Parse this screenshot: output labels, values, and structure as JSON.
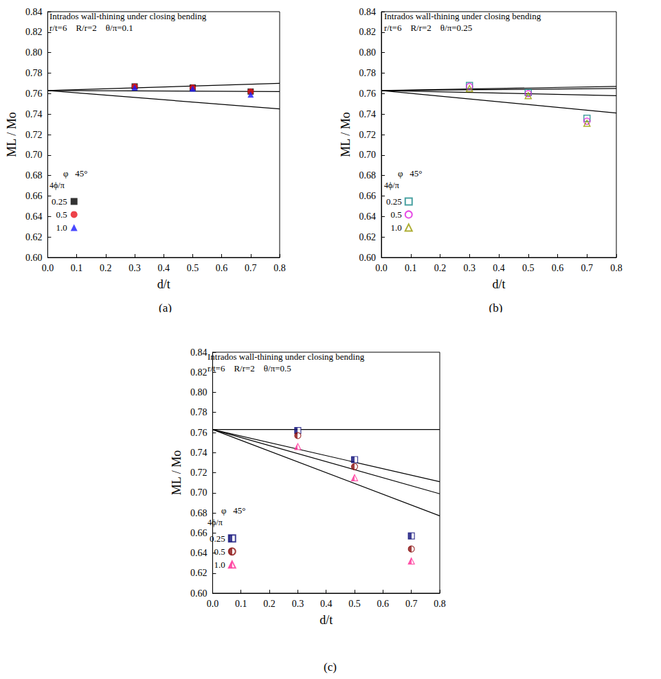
{
  "chart_data": [
    {
      "type": "scatter",
      "title": "Intrados wall-thining under closing bending",
      "subtitle": "r/t=6    R/r=2    θ/π=0.1",
      "caption": "(a)",
      "x_label": "d/t",
      "y_label": "ML / Mo",
      "legend": "lower left",
      "legend_title": "φ   45°",
      "legend_subtitle": "4ϕ/π",
      "grid": false,
      "xlim": [
        0,
        0.8
      ],
      "xticks": [
        {
          "value": 0,
          "label": "0.0"
        },
        {
          "value": 0.1,
          "label": "0.1"
        },
        {
          "value": 0.2,
          "label": "0.2"
        },
        {
          "value": 0.3,
          "label": "0.3"
        },
        {
          "value": 0.4,
          "label": "0.4"
        },
        {
          "value": 0.5,
          "label": "0.5"
        },
        {
          "value": 0.6,
          "label": "0.6"
        },
        {
          "value": 0.7,
          "label": "0.7"
        },
        {
          "value": 0.8,
          "label": "0.8"
        }
      ],
      "ylim": [
        0.6,
        0.84
      ],
      "yticks": [
        {
          "value": 0.6,
          "label": "0.60"
        },
        {
          "value": 0.62,
          "label": "0.62"
        },
        {
          "value": 0.64,
          "label": "0.64"
        },
        {
          "value": 0.66,
          "label": "0.66"
        },
        {
          "value": 0.68,
          "label": "0.68"
        },
        {
          "value": 0.7,
          "label": "0.70"
        },
        {
          "value": 0.72,
          "label": "0.72"
        },
        {
          "value": 0.74,
          "label": "0.74"
        },
        {
          "value": 0.76,
          "label": "0.76"
        },
        {
          "value": 0.78,
          "label": "0.78"
        },
        {
          "value": 0.8,
          "label": "0.80"
        },
        {
          "value": 0.82,
          "label": "0.82"
        },
        {
          "value": 0.84,
          "label": "0.84"
        }
      ],
      "x": [
        0.3,
        0.5,
        0.7
      ],
      "series": [
        {
          "name": "0.25",
          "color": "#000000",
          "marker": "square",
          "values": [
            0.767,
            0.766,
            0.762
          ]
        },
        {
          "name": "0.5",
          "color": "#e8131b",
          "marker": "circle",
          "values": [
            0.767,
            0.766,
            0.762
          ]
        },
        {
          "name": "1.0",
          "color": "#1a1aff",
          "marker": "triangle",
          "values": [
            0.766,
            0.765,
            0.759
          ]
        }
      ],
      "lines": [
        {
          "type": "line",
          "color": "#000000",
          "x": [
            0,
            0.8
          ],
          "values": [
            0.763,
            0.77
          ]
        },
        {
          "type": "line",
          "color": "#000000",
          "x": [
            0,
            0.8
          ],
          "values": [
            0.763,
            0.762
          ]
        },
        {
          "type": "line",
          "color": "#000000",
          "x": [
            0,
            0.8
          ],
          "values": [
            0.763,
            0.745
          ]
        }
      ]
    },
    {
      "type": "scatter",
      "title": "Intrados wall-thining under closing bending",
      "subtitle": "r/t=6    R/r=2    θ/π=0.25",
      "caption": "(b)",
      "x_label": "d/t",
      "y_label": "ML / Mo",
      "legend": "lower left",
      "legend_title": "φ   45°",
      "legend_subtitle": "4ϕ/π",
      "grid": false,
      "xlim": [
        0,
        0.8
      ],
      "xticks": [
        {
          "value": 0,
          "label": "0.0"
        },
        {
          "value": 0.1,
          "label": "0.1"
        },
        {
          "value": 0.2,
          "label": "0.2"
        },
        {
          "value": 0.3,
          "label": "0.3"
        },
        {
          "value": 0.4,
          "label": "0.4"
        },
        {
          "value": 0.5,
          "label": "0.5"
        },
        {
          "value": 0.6,
          "label": "0.6"
        },
        {
          "value": 0.7,
          "label": "0.7"
        },
        {
          "value": 0.8,
          "label": "0.8"
        }
      ],
      "ylim": [
        0.6,
        0.84
      ],
      "yticks": [
        {
          "value": 0.6,
          "label": "0.60"
        },
        {
          "value": 0.62,
          "label": "0.62"
        },
        {
          "value": 0.64,
          "label": "0.64"
        },
        {
          "value": 0.66,
          "label": "0.66"
        },
        {
          "value": 0.68,
          "label": "0.68"
        },
        {
          "value": 0.7,
          "label": "0.70"
        },
        {
          "value": 0.72,
          "label": "0.72"
        },
        {
          "value": 0.74,
          "label": "0.74"
        },
        {
          "value": 0.76,
          "label": "0.76"
        },
        {
          "value": 0.78,
          "label": "0.78"
        },
        {
          "value": 0.8,
          "label": "0.80"
        },
        {
          "value": 0.82,
          "label": "0.82"
        },
        {
          "value": 0.84,
          "label": "0.84"
        }
      ],
      "x": [
        0.3,
        0.5,
        0.7
      ],
      "series": [
        {
          "name": "0.25",
          "color": "#1a8a8a",
          "marker": "open-square",
          "values": [
            0.768,
            0.761,
            0.736
          ]
        },
        {
          "name": "0.5",
          "color": "#e020e0",
          "marker": "open-circle",
          "values": [
            0.767,
            0.76,
            0.733
          ]
        },
        {
          "name": "1.0",
          "color": "#9a9a00",
          "marker": "open-triangle",
          "values": [
            0.765,
            0.758,
            0.731
          ]
        }
      ],
      "lines": [
        {
          "type": "line",
          "color": "#000000",
          "x": [
            0,
            0.8
          ],
          "values": [
            0.763,
            0.767
          ]
        },
        {
          "type": "line",
          "color": "#000000",
          "x": [
            0,
            0.8
          ],
          "values": [
            0.763,
            0.765
          ]
        },
        {
          "type": "line",
          "color": "#000000",
          "x": [
            0,
            0.8
          ],
          "values": [
            0.763,
            0.758
          ]
        },
        {
          "type": "line",
          "color": "#000000",
          "x": [
            0,
            0.8
          ],
          "values": [
            0.763,
            0.741
          ]
        }
      ]
    },
    {
      "type": "scatter",
      "title": "Intrados wall-thining under closing bending",
      "subtitle": "r/t=6    R/r=2    θ/π=0.5",
      "caption": "(c)",
      "x_label": "d/t",
      "y_label": "ML / Mo",
      "legend": "lower left",
      "legend_title": "φ   45°",
      "legend_subtitle": "4ϕ/π",
      "grid": false,
      "xlim": [
        0,
        0.8
      ],
      "xticks": [
        {
          "value": 0,
          "label": "0.0"
        },
        {
          "value": 0.1,
          "label": "0.1"
        },
        {
          "value": 0.2,
          "label": "0.2"
        },
        {
          "value": 0.3,
          "label": "0.3"
        },
        {
          "value": 0.4,
          "label": "0.4"
        },
        {
          "value": 0.5,
          "label": "0.5"
        },
        {
          "value": 0.6,
          "label": "0.6"
        },
        {
          "value": 0.7,
          "label": "0.7"
        },
        {
          "value": 0.8,
          "label": "0.8"
        }
      ],
      "ylim": [
        0.6,
        0.84
      ],
      "yticks": [
        {
          "value": 0.6,
          "label": "0.60"
        },
        {
          "value": 0.62,
          "label": "0.62"
        },
        {
          "value": 0.64,
          "label": "0.64"
        },
        {
          "value": 0.66,
          "label": "0.66"
        },
        {
          "value": 0.68,
          "label": "0.68"
        },
        {
          "value": 0.7,
          "label": "0.70"
        },
        {
          "value": 0.72,
          "label": "0.72"
        },
        {
          "value": 0.74,
          "label": "0.74"
        },
        {
          "value": 0.76,
          "label": "0.76"
        },
        {
          "value": 0.78,
          "label": "0.78"
        },
        {
          "value": 0.8,
          "label": "0.80"
        },
        {
          "value": 0.82,
          "label": "0.82"
        },
        {
          "value": 0.84,
          "label": "0.84"
        }
      ],
      "x": [
        0.3,
        0.5,
        0.7
      ],
      "series": [
        {
          "name": "0.25",
          "color": "#10107a",
          "marker": "half-square",
          "values": [
            0.762,
            0.733,
            0.657
          ]
        },
        {
          "name": "0.5",
          "color": "#8b1010",
          "marker": "half-circle",
          "values": [
            0.757,
            0.726,
            0.644
          ]
        },
        {
          "name": "1.0",
          "color": "#ff3399",
          "marker": "half-triangle",
          "values": [
            0.746,
            0.715,
            0.632
          ]
        }
      ],
      "lines": [
        {
          "type": "line",
          "color": "#000000",
          "x": [
            0,
            0.8
          ],
          "values": [
            0.763,
            0.763
          ]
        },
        {
          "type": "line",
          "color": "#000000",
          "x": [
            0,
            0.8
          ],
          "values": [
            0.763,
            0.711
          ]
        },
        {
          "type": "line",
          "color": "#000000",
          "x": [
            0,
            0.8
          ],
          "values": [
            0.763,
            0.699
          ]
        },
        {
          "type": "line",
          "color": "#000000",
          "x": [
            0,
            0.8
          ],
          "values": [
            0.763,
            0.677
          ]
        }
      ]
    }
  ]
}
